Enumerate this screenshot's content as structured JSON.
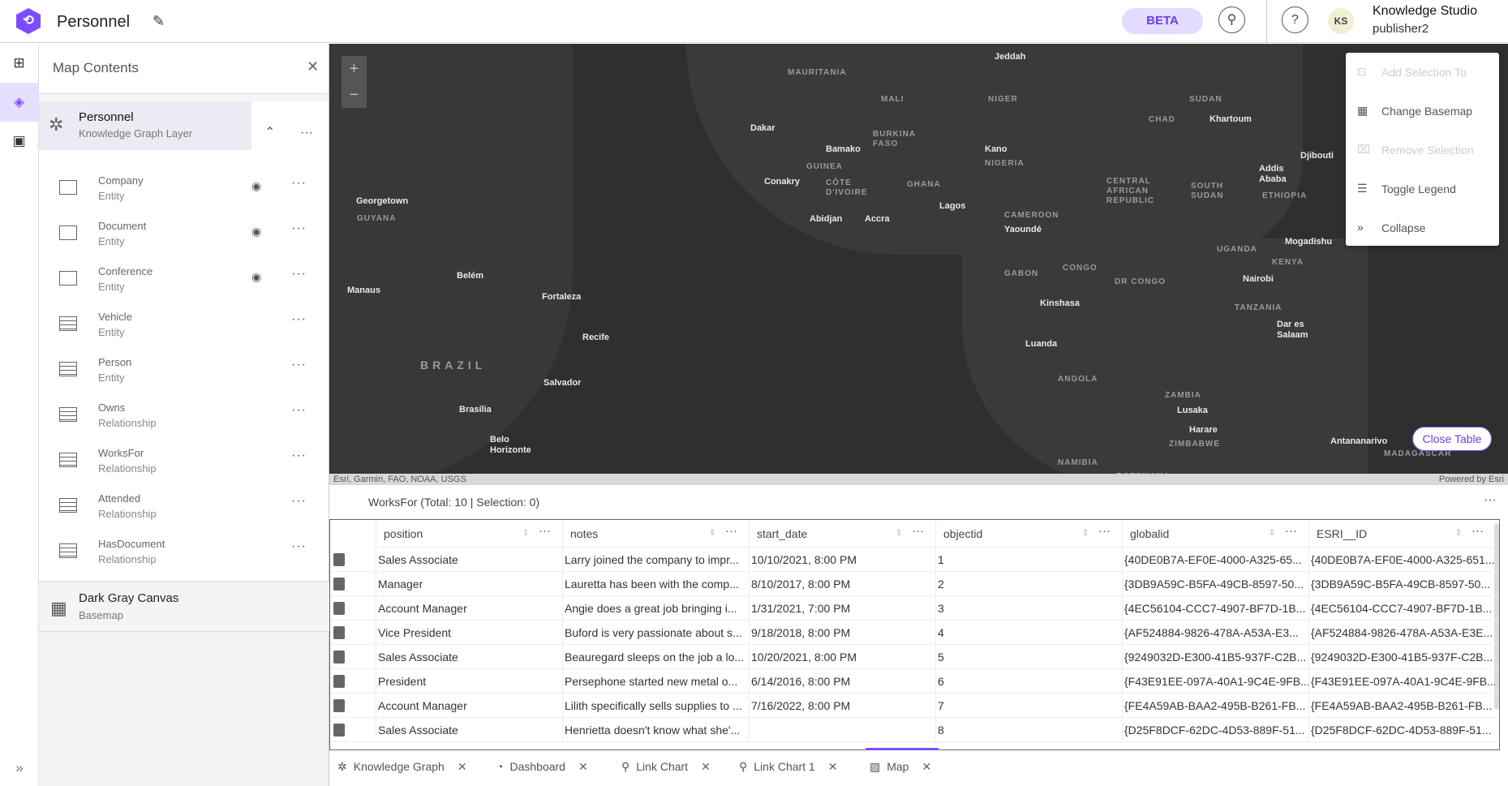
{
  "header": {
    "title": "Personnel",
    "beta": "BETA",
    "user_initials": "KS",
    "user_name": "Knowledge Studio",
    "user_role": "publisher2"
  },
  "panel": {
    "title": "Map Contents",
    "layer": {
      "name": "Personnel",
      "type": "Knowledge Graph Layer"
    },
    "items": [
      {
        "name": "Company",
        "type": "Entity",
        "icon": "polygon",
        "visible": true
      },
      {
        "name": "Document",
        "type": "Entity",
        "icon": "polygon",
        "visible": true
      },
      {
        "name": "Conference",
        "type": "Entity",
        "icon": "polygon",
        "visible": true
      },
      {
        "name": "Vehicle",
        "type": "Entity",
        "icon": "table"
      },
      {
        "name": "Person",
        "type": "Entity",
        "icon": "table"
      },
      {
        "name": "Owns",
        "type": "Relationship",
        "icon": "table"
      },
      {
        "name": "WorksFor",
        "type": "Relationship",
        "icon": "table"
      },
      {
        "name": "Attended",
        "type": "Relationship",
        "icon": "table"
      },
      {
        "name": "HasDocument",
        "type": "Relationship",
        "icon": "table"
      }
    ],
    "basemap": {
      "name": "Dark Gray Canvas",
      "type": "Basemap"
    }
  },
  "map": {
    "labels": [
      "Jeddah",
      "Dakar",
      "Bamako",
      "Khartoum",
      "Djibouti",
      "Kano",
      "Conakry",
      "Addis Ababa",
      "Abidjan",
      "Accra",
      "Lagos",
      "Yaoundé",
      "Georgetown",
      "Mogadishu",
      "Manaus",
      "Belém",
      "Nairobi",
      "Fortaleza",
      "Kinshasa",
      "Dar es Salaam",
      "Recife",
      "Luanda",
      "Salvador",
      "Brasília",
      "Lusaka",
      "Belo Horizonte",
      "Harare",
      "Antananarivo"
    ],
    "countries": [
      "MAURITANIA",
      "MALI",
      "NIGER",
      "SUDAN",
      "CHAD",
      "BURKINA FASO",
      "GUINEA",
      "NIGERIA",
      "CÔTE D'IVOIRE",
      "GHANA",
      "CENTRAL AFRICAN REPUBLIC",
      "SOUTH SUDAN",
      "ETHIOPIA",
      "GUYANA",
      "CAMEROON",
      "UGANDA",
      "KENYA",
      "GABON",
      "CONGO",
      "DR CONGO",
      "TANZANIA",
      "BRAZIL",
      "ANGOLA",
      "ZAMBIA",
      "ZIMBABWE",
      "NAMIBIA",
      "MADAGASCAR",
      "BOTSWANA"
    ],
    "attribution": "Esri, Garmin, FAO, NOAA, USGS",
    "powered_by": "Powered by Esri",
    "close_table": "Close Table"
  },
  "menu": [
    {
      "label": "Add Selection To",
      "disabled": true
    },
    {
      "label": "Change Basemap"
    },
    {
      "label": "Remove Selection",
      "disabled": true
    },
    {
      "label": "Toggle Legend"
    },
    {
      "label": "Collapse"
    }
  ],
  "table": {
    "title": "WorksFor (Total: 10 | Selection: 0)",
    "columns": [
      "position",
      "notes",
      "start_date",
      "objectid",
      "globalid",
      "ESRI__ID"
    ],
    "rows": [
      [
        "Sales Associate",
        "Larry joined the company to impr...",
        "10/10/2021, 8:00 PM",
        "1",
        "{40DE0B7A-EF0E-4000-A325-65...",
        "{40DE0B7A-EF0E-4000-A325-651..."
      ],
      [
        "Manager",
        "Lauretta has been with the comp...",
        "8/10/2017, 8:00 PM",
        "2",
        "{3DB9A59C-B5FA-49CB-8597-50...",
        "{3DB9A59C-B5FA-49CB-8597-50..."
      ],
      [
        "Account Manager",
        "Angie does a great job bringing i...",
        "1/31/2021, 7:00 PM",
        "3",
        "{4EC56104-CCC7-4907-BF7D-1B...",
        "{4EC56104-CCC7-4907-BF7D-1B..."
      ],
      [
        "Vice President",
        "Buford is very passionate about s...",
        "9/18/2018, 8:00 PM",
        "4",
        "{AF524884-9826-478A-A53A-E3...",
        "{AF524884-9826-478A-A53A-E3E..."
      ],
      [
        "Sales Associate",
        "Beauregard sleeps on the job a lo...",
        "10/20/2021, 8:00 PM",
        "5",
        "{9249032D-E300-41B5-937F-C2B...",
        "{9249032D-E300-41B5-937F-C2B..."
      ],
      [
        "President",
        "Persephone started new metal o...",
        "6/14/2016, 8:00 PM",
        "6",
        "{F43E91EE-097A-40A1-9C4E-9FB...",
        "{F43E91EE-097A-40A1-9C4E-9FB..."
      ],
      [
        "Account Manager",
        "Lilith specifically sells supplies to ...",
        "7/16/2022, 8:00 PM",
        "7",
        "{FE4A59AB-BAA2-495B-B261-FB...",
        "{FE4A59AB-BAA2-495B-B261-FB..."
      ],
      [
        "Sales Associate",
        "Henrietta doesn't know what she'...",
        "",
        "8",
        "{D25F8DCF-62DC-4D53-889F-51...",
        "{D25F8DCF-62DC-4D53-889F-51..."
      ]
    ]
  },
  "tabs": [
    {
      "label": "Knowledge Graph"
    },
    {
      "label": "Dashboard"
    },
    {
      "label": "Link Chart"
    },
    {
      "label": "Link Chart 1"
    },
    {
      "label": "Map",
      "active": true
    }
  ],
  "colors": {
    "accent": "#7c4dff",
    "map_bg": "#2f2f2f"
  }
}
